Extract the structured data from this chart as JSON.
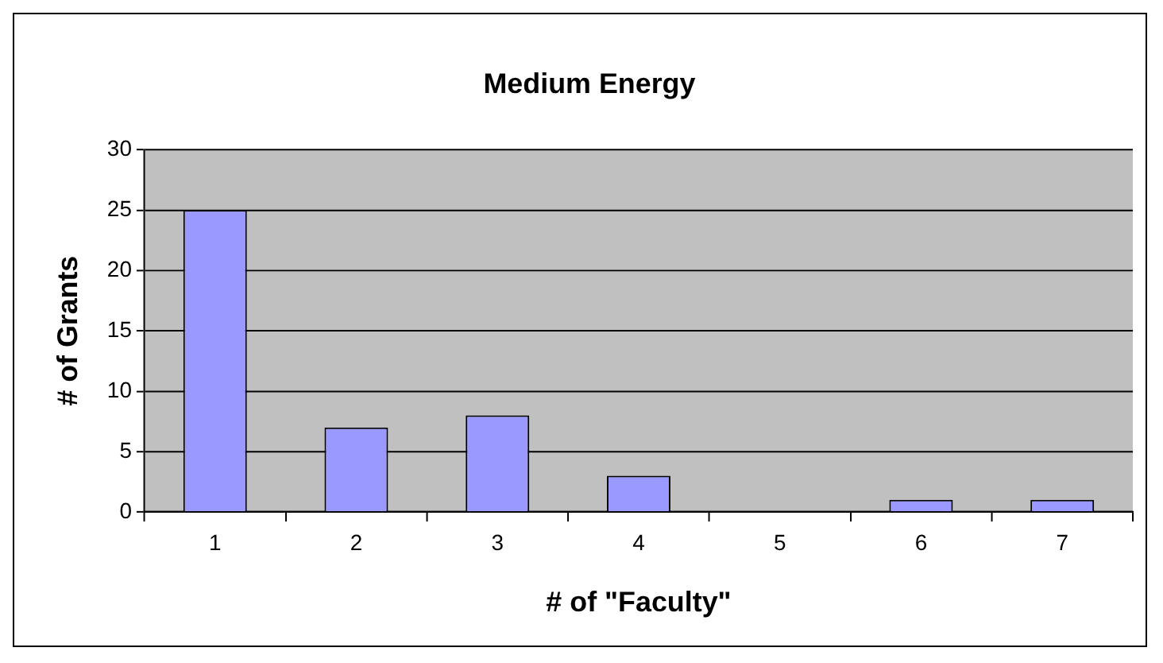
{
  "chart_data": {
    "type": "bar",
    "title": "Medium Energy",
    "xlabel": "# of \"Faculty\"",
    "ylabel": "# of Grants",
    "categories": [
      "1",
      "2",
      "3",
      "4",
      "5",
      "6",
      "7"
    ],
    "values": [
      25,
      7,
      8,
      3,
      0,
      1,
      1
    ],
    "color": "#9999ff",
    "ylim": [
      0,
      30
    ],
    "yticks": [
      0,
      5,
      10,
      15,
      20,
      25,
      30
    ],
    "grid": "y",
    "legend": false
  }
}
